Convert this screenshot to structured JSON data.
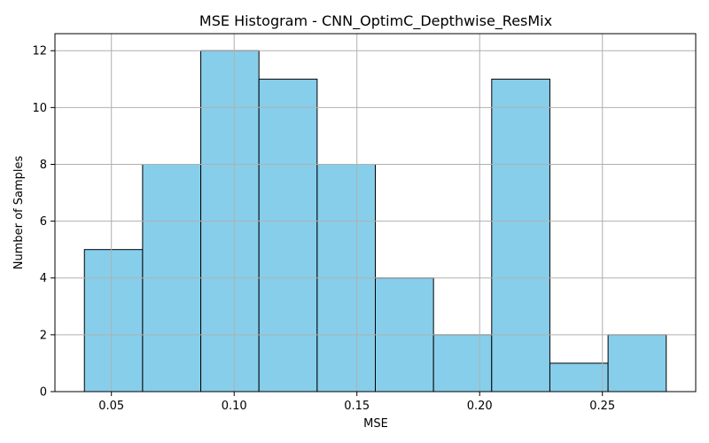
{
  "chart_data": {
    "type": "bar",
    "title": "MSE Histogram - CNN_OptimC_Depthwise_ResMix",
    "xlabel": "MSE",
    "ylabel": "Number of Samples",
    "bin_edges": [
      0.039,
      0.0627,
      0.0864,
      0.1101,
      0.1338,
      0.1575,
      0.1812,
      0.2049,
      0.2286,
      0.2523,
      0.276
    ],
    "values": [
      5,
      8,
      12,
      11,
      8,
      4,
      2,
      11,
      1,
      2
    ],
    "xlim": [
      0.027,
      0.288
    ],
    "ylim": [
      0,
      12.6
    ],
    "x_ticks": [
      {
        "value": 0.05,
        "label": "0.05"
      },
      {
        "value": 0.1,
        "label": "0.10"
      },
      {
        "value": 0.15,
        "label": "0.15"
      },
      {
        "value": 0.2,
        "label": "0.20"
      },
      {
        "value": 0.25,
        "label": "0.25"
      }
    ],
    "y_ticks": [
      {
        "value": 0,
        "label": "0"
      },
      {
        "value": 2,
        "label": "2"
      },
      {
        "value": 4,
        "label": "4"
      },
      {
        "value": 6,
        "label": "6"
      },
      {
        "value": 8,
        "label": "8"
      },
      {
        "value": 10,
        "label": "10"
      },
      {
        "value": 12,
        "label": "12"
      }
    ],
    "grid": true,
    "bar_color": "#87ceeb",
    "edge_color": "#000000",
    "grid_color": "#b0b0b0"
  }
}
